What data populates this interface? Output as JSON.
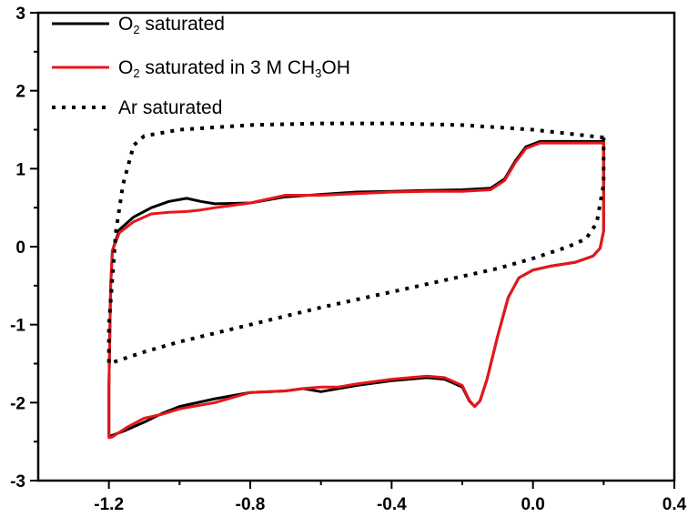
{
  "chart_data": {
    "type": "line",
    "title": "",
    "xlabel": "",
    "ylabel": "",
    "xlim": [
      -1.4,
      0.4
    ],
    "ylim": [
      -3,
      3
    ],
    "x_ticks": [
      -1.2,
      -0.8,
      -0.4,
      0.0,
      0.4
    ],
    "x_tick_labels": [
      "-1.2",
      "-0.8",
      "-0.4",
      "0.0",
      "0.4"
    ],
    "y_ticks": [
      -3,
      -2,
      -1,
      0,
      1,
      2,
      3
    ],
    "y_tick_labels": [
      "-3",
      "-2",
      "-1",
      "0",
      "1",
      "2",
      "3"
    ],
    "grid": false,
    "legend_position": "top-left",
    "series": [
      {
        "name": "O2 saturated",
        "legend": {
          "pre": "O",
          "sub": "2",
          "post": " saturated"
        },
        "color": "#000000",
        "style": "solid",
        "points": [
          [
            0.2,
            1.35
          ],
          [
            0.2,
            0.2
          ],
          [
            0.19,
            -0.02
          ],
          [
            0.17,
            -0.12
          ],
          [
            0.12,
            -0.2
          ],
          [
            0.05,
            -0.25
          ],
          [
            0.0,
            -0.3
          ],
          [
            -0.04,
            -0.4
          ],
          [
            -0.07,
            -0.65
          ],
          [
            -0.1,
            -1.15
          ],
          [
            -0.13,
            -1.7
          ],
          [
            -0.15,
            -1.98
          ],
          [
            -0.165,
            -2.05
          ],
          [
            -0.18,
            -1.98
          ],
          [
            -0.2,
            -1.8
          ],
          [
            -0.25,
            -1.7
          ],
          [
            -0.3,
            -1.68
          ],
          [
            -0.4,
            -1.72
          ],
          [
            -0.5,
            -1.78
          ],
          [
            -0.55,
            -1.82
          ],
          [
            -0.6,
            -1.86
          ],
          [
            -0.65,
            -1.82
          ],
          [
            -0.7,
            -1.85
          ],
          [
            -0.8,
            -1.87
          ],
          [
            -0.9,
            -1.95
          ],
          [
            -1.0,
            -2.05
          ],
          [
            -1.05,
            -2.14
          ],
          [
            -1.1,
            -2.25
          ],
          [
            -1.15,
            -2.35
          ],
          [
            -1.19,
            -2.42
          ],
          [
            -1.2,
            -2.43
          ],
          [
            -1.2,
            -1.8
          ],
          [
            -1.195,
            -0.5
          ],
          [
            -1.19,
            -0.05
          ],
          [
            -1.17,
            0.22
          ],
          [
            -1.13,
            0.38
          ],
          [
            -1.08,
            0.5
          ],
          [
            -1.03,
            0.58
          ],
          [
            -0.98,
            0.62
          ],
          [
            -0.94,
            0.58
          ],
          [
            -0.9,
            0.55
          ],
          [
            -0.8,
            0.56
          ],
          [
            -0.7,
            0.64
          ],
          [
            -0.6,
            0.67
          ],
          [
            -0.5,
            0.7
          ],
          [
            -0.4,
            0.71
          ],
          [
            -0.3,
            0.72
          ],
          [
            -0.2,
            0.73
          ],
          [
            -0.12,
            0.75
          ],
          [
            -0.08,
            0.87
          ],
          [
            -0.05,
            1.1
          ],
          [
            -0.02,
            1.28
          ],
          [
            0.02,
            1.35
          ],
          [
            0.1,
            1.35
          ],
          [
            0.2,
            1.35
          ]
        ]
      },
      {
        "name": "O2 saturated in 3 M CH3OH",
        "legend": {
          "pre": "O",
          "sub": "2",
          "post": " saturated in 3 M CH",
          "sub2": "3",
          "post2": "OH"
        },
        "color": "#e8161b",
        "style": "solid",
        "points": [
          [
            0.2,
            1.33
          ],
          [
            0.2,
            0.2
          ],
          [
            0.19,
            -0.02
          ],
          [
            0.17,
            -0.12
          ],
          [
            0.12,
            -0.2
          ],
          [
            0.05,
            -0.25
          ],
          [
            0.0,
            -0.3
          ],
          [
            -0.04,
            -0.4
          ],
          [
            -0.07,
            -0.65
          ],
          [
            -0.1,
            -1.15
          ],
          [
            -0.13,
            -1.7
          ],
          [
            -0.15,
            -1.98
          ],
          [
            -0.165,
            -2.05
          ],
          [
            -0.18,
            -1.97
          ],
          [
            -0.2,
            -1.78
          ],
          [
            -0.25,
            -1.68
          ],
          [
            -0.3,
            -1.66
          ],
          [
            -0.4,
            -1.7
          ],
          [
            -0.5,
            -1.76
          ],
          [
            -0.55,
            -1.8
          ],
          [
            -0.6,
            -1.8
          ],
          [
            -0.65,
            -1.82
          ],
          [
            -0.7,
            -1.85
          ],
          [
            -0.8,
            -1.87
          ],
          [
            -0.9,
            -2.0
          ],
          [
            -1.0,
            -2.08
          ],
          [
            -1.05,
            -2.15
          ],
          [
            -1.1,
            -2.2
          ],
          [
            -1.15,
            -2.32
          ],
          [
            -1.19,
            -2.44
          ],
          [
            -1.2,
            -2.45
          ],
          [
            -1.2,
            -1.8
          ],
          [
            -1.195,
            -0.5
          ],
          [
            -1.19,
            -0.05
          ],
          [
            -1.17,
            0.18
          ],
          [
            -1.13,
            0.32
          ],
          [
            -1.08,
            0.42
          ],
          [
            -1.03,
            0.44
          ],
          [
            -0.98,
            0.45
          ],
          [
            -0.94,
            0.47
          ],
          [
            -0.9,
            0.5
          ],
          [
            -0.8,
            0.56
          ],
          [
            -0.7,
            0.66
          ],
          [
            -0.6,
            0.66
          ],
          [
            -0.5,
            0.68
          ],
          [
            -0.4,
            0.7
          ],
          [
            -0.3,
            0.71
          ],
          [
            -0.2,
            0.71
          ],
          [
            -0.12,
            0.73
          ],
          [
            -0.08,
            0.85
          ],
          [
            -0.05,
            1.08
          ],
          [
            -0.02,
            1.26
          ],
          [
            0.02,
            1.33
          ],
          [
            0.1,
            1.33
          ],
          [
            0.2,
            1.33
          ]
        ]
      },
      {
        "name": "Ar saturated",
        "legend": {
          "pre": "Ar saturated"
        },
        "color": "#000000",
        "style": "dotted",
        "points": [
          [
            0.2,
            1.4
          ],
          [
            0.1,
            1.45
          ],
          [
            0.0,
            1.5
          ],
          [
            -0.2,
            1.56
          ],
          [
            -0.4,
            1.58
          ],
          [
            -0.6,
            1.58
          ],
          [
            -0.8,
            1.56
          ],
          [
            -1.0,
            1.5
          ],
          [
            -1.1,
            1.42
          ],
          [
            -1.13,
            1.3
          ],
          [
            -1.16,
            0.8
          ],
          [
            -1.18,
            0.2
          ],
          [
            -1.19,
            -0.4
          ],
          [
            -1.2,
            -1.0
          ],
          [
            -1.2,
            -1.5
          ],
          [
            -1.1,
            -1.35
          ],
          [
            -1.0,
            -1.22
          ],
          [
            -0.8,
            -1.0
          ],
          [
            -0.6,
            -0.78
          ],
          [
            -0.4,
            -0.58
          ],
          [
            -0.2,
            -0.38
          ],
          [
            -0.1,
            -0.28
          ],
          [
            0.0,
            -0.15
          ],
          [
            0.1,
            0.0
          ],
          [
            0.15,
            0.1
          ],
          [
            0.18,
            0.3
          ],
          [
            0.2,
            0.8
          ],
          [
            0.2,
            1.4
          ]
        ]
      }
    ]
  }
}
